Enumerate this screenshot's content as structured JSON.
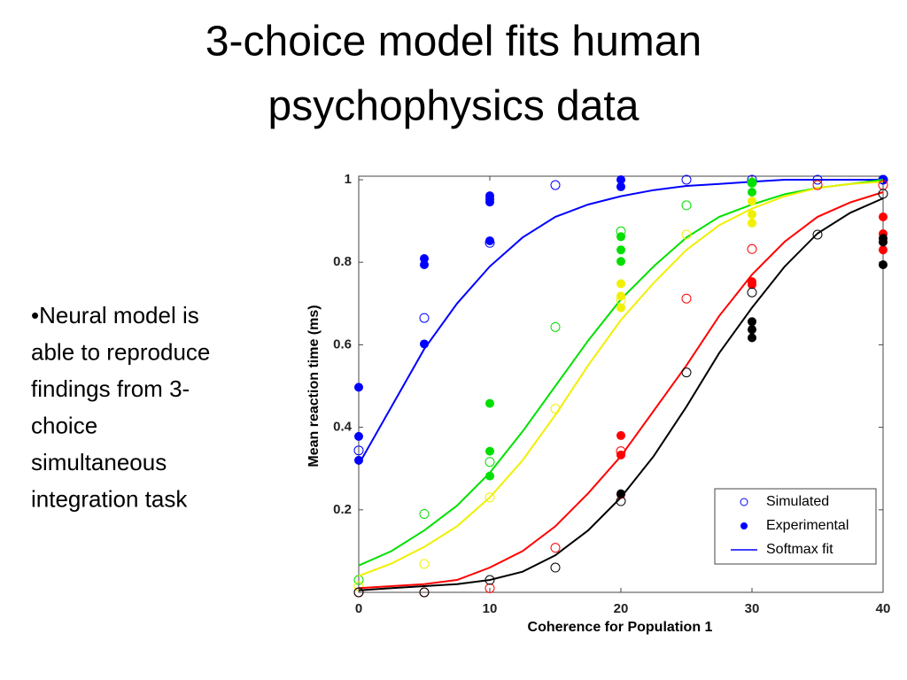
{
  "title_lines": [
    "3-choice model fits human",
    "psychophysics data"
  ],
  "bullet_lines": [
    "•Neural model is",
    "able to reproduce",
    "findings from 3-",
    "choice",
    "simultaneous",
    "integration task"
  ],
  "chart_data": {
    "type": "scatter",
    "xlabel": "Coherence for Population 1",
    "ylabel": "Mean reaction time (ms)",
    "xlim": [
      0,
      40
    ],
    "ylim": [
      0,
      1
    ],
    "xticks": [
      0,
      10,
      20,
      30,
      40
    ],
    "yticks": [
      0.2,
      0.4,
      0.6,
      0.8,
      1
    ],
    "legend_labels": [
      "Simulated",
      "Experimental",
      "Softmax fit"
    ],
    "legend_position": "lower right",
    "series": [
      {
        "color": "#0000ff",
        "simulated": {
          "x": [
            0,
            5,
            10,
            15,
            25,
            30,
            35,
            40
          ],
          "values": [
            0.344,
            0.665,
            0.847,
            0.987,
            1.0,
            1.0,
            1.0,
            1.0
          ]
        },
        "experimental": {
          "x": [
            0,
            0,
            0,
            5,
            5,
            5,
            10,
            10,
            10,
            10,
            20,
            20,
            40
          ],
          "values": [
            0.497,
            0.378,
            0.32,
            0.809,
            0.794,
            0.602,
            0.961,
            0.953,
            0.946,
            0.852,
            1.0,
            0.983,
            1.0
          ]
        },
        "fit": {
          "x": [
            0,
            2.5,
            5,
            7.5,
            10,
            12.5,
            15,
            17.5,
            20,
            22.5,
            25,
            27.5,
            30,
            32.5,
            35,
            37.5,
            40
          ],
          "values": [
            0.31,
            0.45,
            0.59,
            0.7,
            0.79,
            0.86,
            0.91,
            0.94,
            0.96,
            0.975,
            0.985,
            0.99,
            0.995,
            1.0,
            1.0,
            1.0,
            1.0
          ]
        }
      },
      {
        "color": "#00e000",
        "simulated": {
          "x": [
            0,
            5,
            10,
            15,
            20,
            25,
            30
          ],
          "values": [
            0.03,
            0.19,
            0.316,
            0.643,
            0.875,
            0.938,
            0.993
          ]
        },
        "experimental": {
          "x": [
            10,
            10,
            10,
            20,
            20,
            20,
            30,
            30
          ],
          "values": [
            0.458,
            0.342,
            0.282,
            0.862,
            0.83,
            0.802,
            0.993,
            0.97
          ]
        },
        "fit": {
          "x": [
            0,
            2.5,
            5,
            7.5,
            10,
            12.5,
            15,
            17.5,
            20,
            22.5,
            25,
            27.5,
            30,
            32.5,
            35,
            37.5,
            40
          ],
          "values": [
            0.065,
            0.1,
            0.15,
            0.21,
            0.29,
            0.39,
            0.5,
            0.61,
            0.71,
            0.79,
            0.86,
            0.91,
            0.94,
            0.965,
            0.98,
            0.99,
            1.0
          ]
        }
      },
      {
        "color": "#f0f000",
        "simulated": {
          "x": [
            0,
            5,
            10,
            15,
            20,
            25,
            35
          ],
          "values": [
            0.015,
            0.069,
            0.23,
            0.445,
            0.708,
            0.867,
            0.987
          ]
        },
        "experimental": {
          "x": [
            20,
            20,
            20,
            30,
            30,
            30
          ],
          "values": [
            0.748,
            0.718,
            0.69,
            0.948,
            0.916,
            0.895
          ]
        },
        "fit": {
          "x": [
            0,
            2.5,
            5,
            7.5,
            10,
            12.5,
            15,
            17.5,
            20,
            22.5,
            25,
            27.5,
            30,
            32.5,
            35,
            37.5,
            40
          ],
          "values": [
            0.04,
            0.07,
            0.11,
            0.16,
            0.23,
            0.32,
            0.43,
            0.55,
            0.66,
            0.75,
            0.83,
            0.89,
            0.93,
            0.96,
            0.98,
            0.99,
            0.995
          ]
        }
      },
      {
        "color": "#ff0000",
        "simulated": {
          "x": [
            0,
            5,
            10,
            15,
            20,
            25,
            30,
            35,
            40
          ],
          "values": [
            0,
            0,
            0.01,
            0.108,
            0.342,
            0.712,
            0.832,
            0.987,
            0.987
          ]
        },
        "experimental": {
          "x": [
            20,
            20,
            20,
            30,
            30,
            40,
            40,
            40
          ],
          "values": [
            0.38,
            0.333,
            0.237,
            0.753,
            0.746,
            0.91,
            0.869,
            0.83
          ]
        },
        "fit": {
          "x": [
            0,
            2.5,
            5,
            7.5,
            10,
            12.5,
            15,
            17.5,
            20,
            22.5,
            25,
            27.5,
            30,
            32.5,
            35,
            37.5,
            40
          ],
          "values": [
            0.01,
            0.015,
            0.02,
            0.03,
            0.06,
            0.1,
            0.16,
            0.24,
            0.33,
            0.44,
            0.55,
            0.67,
            0.77,
            0.85,
            0.91,
            0.945,
            0.97
          ]
        }
      },
      {
        "color": "#000000",
        "simulated": {
          "x": [
            0,
            5,
            10,
            15,
            20,
            25,
            30,
            35,
            40
          ],
          "values": [
            0,
            0,
            0.03,
            0.06,
            0.221,
            0.533,
            0.727,
            0.867,
            0.966
          ]
        },
        "experimental": {
          "x": [
            20,
            30,
            30,
            30,
            40,
            40,
            40
          ],
          "values": [
            0.239,
            0.656,
            0.637,
            0.617,
            0.858,
            0.849,
            0.794
          ]
        },
        "fit": {
          "x": [
            0,
            2.5,
            5,
            7.5,
            10,
            12.5,
            15,
            17.5,
            20,
            22.5,
            25,
            27.5,
            30,
            32.5,
            35,
            37.5,
            40
          ],
          "values": [
            0.005,
            0.01,
            0.015,
            0.02,
            0.03,
            0.05,
            0.09,
            0.15,
            0.23,
            0.33,
            0.45,
            0.58,
            0.69,
            0.79,
            0.87,
            0.92,
            0.955
          ]
        }
      }
    ]
  }
}
